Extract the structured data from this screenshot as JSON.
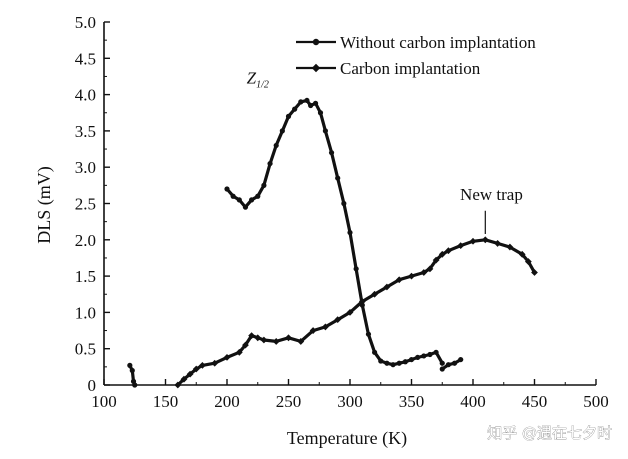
{
  "chart_data": {
    "type": "line",
    "xlabel": "Temperature (K)",
    "ylabel": "DLS (mV)",
    "xlim": [
      100,
      500
    ],
    "ylim": [
      0,
      5.0
    ],
    "xticks": [
      "100",
      "150",
      "200",
      "250",
      "300",
      "350",
      "400",
      "450",
      "500"
    ],
    "yticks": [
      "0",
      "0.5",
      "1.0",
      "1.5",
      "2.0",
      "2.5",
      "3.0",
      "3.5",
      "4.0",
      "4.5",
      "5.0"
    ],
    "legend_position": "top-right",
    "grid": false,
    "series": [
      {
        "name": "Without carbon implantation",
        "marker": "circle",
        "color": "#111111",
        "segments": [
          {
            "x": [
              121,
              123,
              124,
              125
            ],
            "y": [
              0.27,
              0.2,
              0.05,
              0.0
            ]
          },
          {
            "x": [
              200,
              205,
              210,
              215,
              220,
              225,
              230,
              235,
              240,
              245,
              250,
              255,
              260,
              265,
              268,
              272,
              276,
              280,
              285,
              290,
              295,
              300,
              305,
              310,
              315,
              320,
              325,
              330,
              335,
              340,
              345,
              350,
              355,
              360,
              365,
              370,
              375
            ],
            "y": [
              2.7,
              2.6,
              2.55,
              2.45,
              2.55,
              2.6,
              2.75,
              3.05,
              3.3,
              3.5,
              3.7,
              3.8,
              3.9,
              3.92,
              3.85,
              3.88,
              3.75,
              3.5,
              3.2,
              2.85,
              2.5,
              2.1,
              1.6,
              1.1,
              0.7,
              0.45,
              0.33,
              0.3,
              0.28,
              0.3,
              0.32,
              0.35,
              0.38,
              0.4,
              0.42,
              0.45,
              0.3
            ]
          },
          {
            "x": [
              375,
              380,
              385,
              390
            ],
            "y": [
              0.22,
              0.28,
              0.3,
              0.35
            ]
          }
        ]
      },
      {
        "name": "Carbon implantation",
        "marker": "diamond",
        "color": "#111111",
        "segments": [
          {
            "x": [
              160,
              165,
              170,
              175,
              180,
              190,
              200,
              210,
              215,
              220,
              225,
              230,
              240,
              250,
              260,
              270,
              280,
              290,
              300,
              310,
              320,
              330,
              340,
              350,
              360,
              365,
              370,
              375,
              380,
              390,
              400,
              410,
              420,
              430,
              440,
              445,
              450
            ],
            "y": [
              0.0,
              0.08,
              0.15,
              0.22,
              0.27,
              0.3,
              0.38,
              0.45,
              0.55,
              0.68,
              0.65,
              0.62,
              0.6,
              0.65,
              0.6,
              0.75,
              0.8,
              0.9,
              1.0,
              1.15,
              1.25,
              1.35,
              1.45,
              1.5,
              1.55,
              1.6,
              1.72,
              1.8,
              1.85,
              1.92,
              1.98,
              2.0,
              1.95,
              1.9,
              1.8,
              1.7,
              1.55
            ]
          }
        ]
      }
    ],
    "annotations": [
      {
        "text": "Z",
        "sub": "1/2",
        "x": 216,
        "y": 4.15
      },
      {
        "text": "New trap",
        "x": 415,
        "y": 2.55
      }
    ]
  },
  "watermark": "知乎 @遇在七夕时"
}
